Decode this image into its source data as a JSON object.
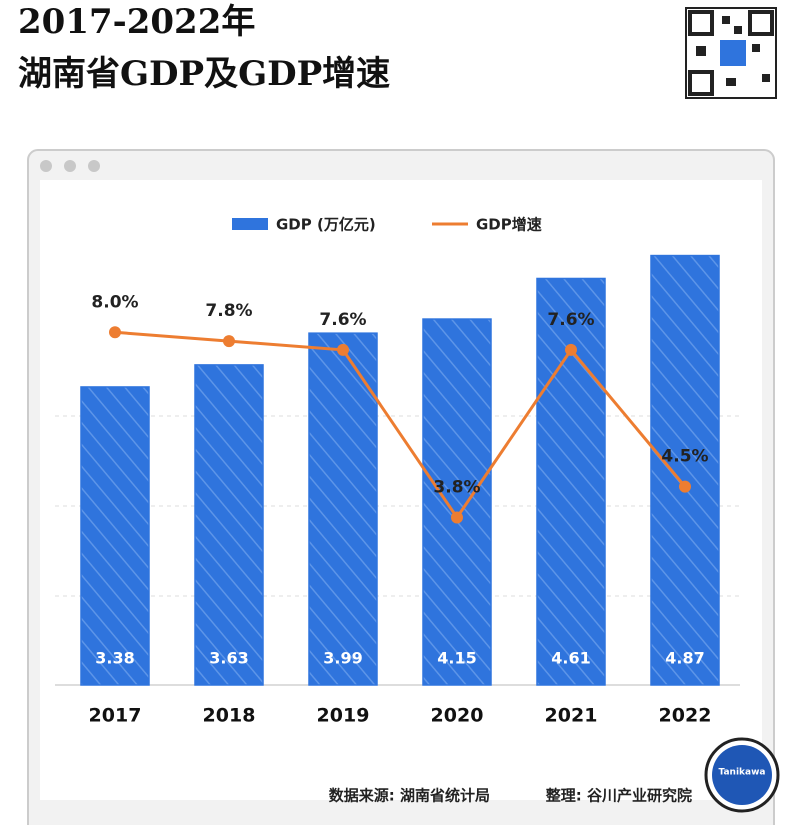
{
  "chart_data": {
    "type": "bar_line",
    "title": [
      "2017-2022年",
      "湖南省GDP及GDP增速"
    ],
    "categories": [
      "2017",
      "2018",
      "2019",
      "2020",
      "2021",
      "2022"
    ],
    "series": [
      {
        "name": "GDP (万亿元)",
        "color": "#2f74dd",
        "type": "bar",
        "values": [
          3.38,
          3.63,
          3.99,
          4.15,
          4.61,
          4.87
        ]
      },
      {
        "name": "GDP增速",
        "color": "#ed7d31",
        "type": "line",
        "axis": "y2",
        "values": [
          8.0,
          7.8,
          7.6,
          3.8,
          7.6,
          4.5
        ],
        "value_labels": [
          "8.0%",
          "7.8%",
          "7.6%",
          "3.8%",
          "7.6%",
          "4.5%"
        ]
      }
    ],
    "ylim": [
      0,
      5.5
    ],
    "y2lim": [
      0,
      11
    ],
    "source": "数据来源: 湖南省统计局",
    "credit": "整理: 谷川产业研究院",
    "badge": "Tanikawa"
  }
}
